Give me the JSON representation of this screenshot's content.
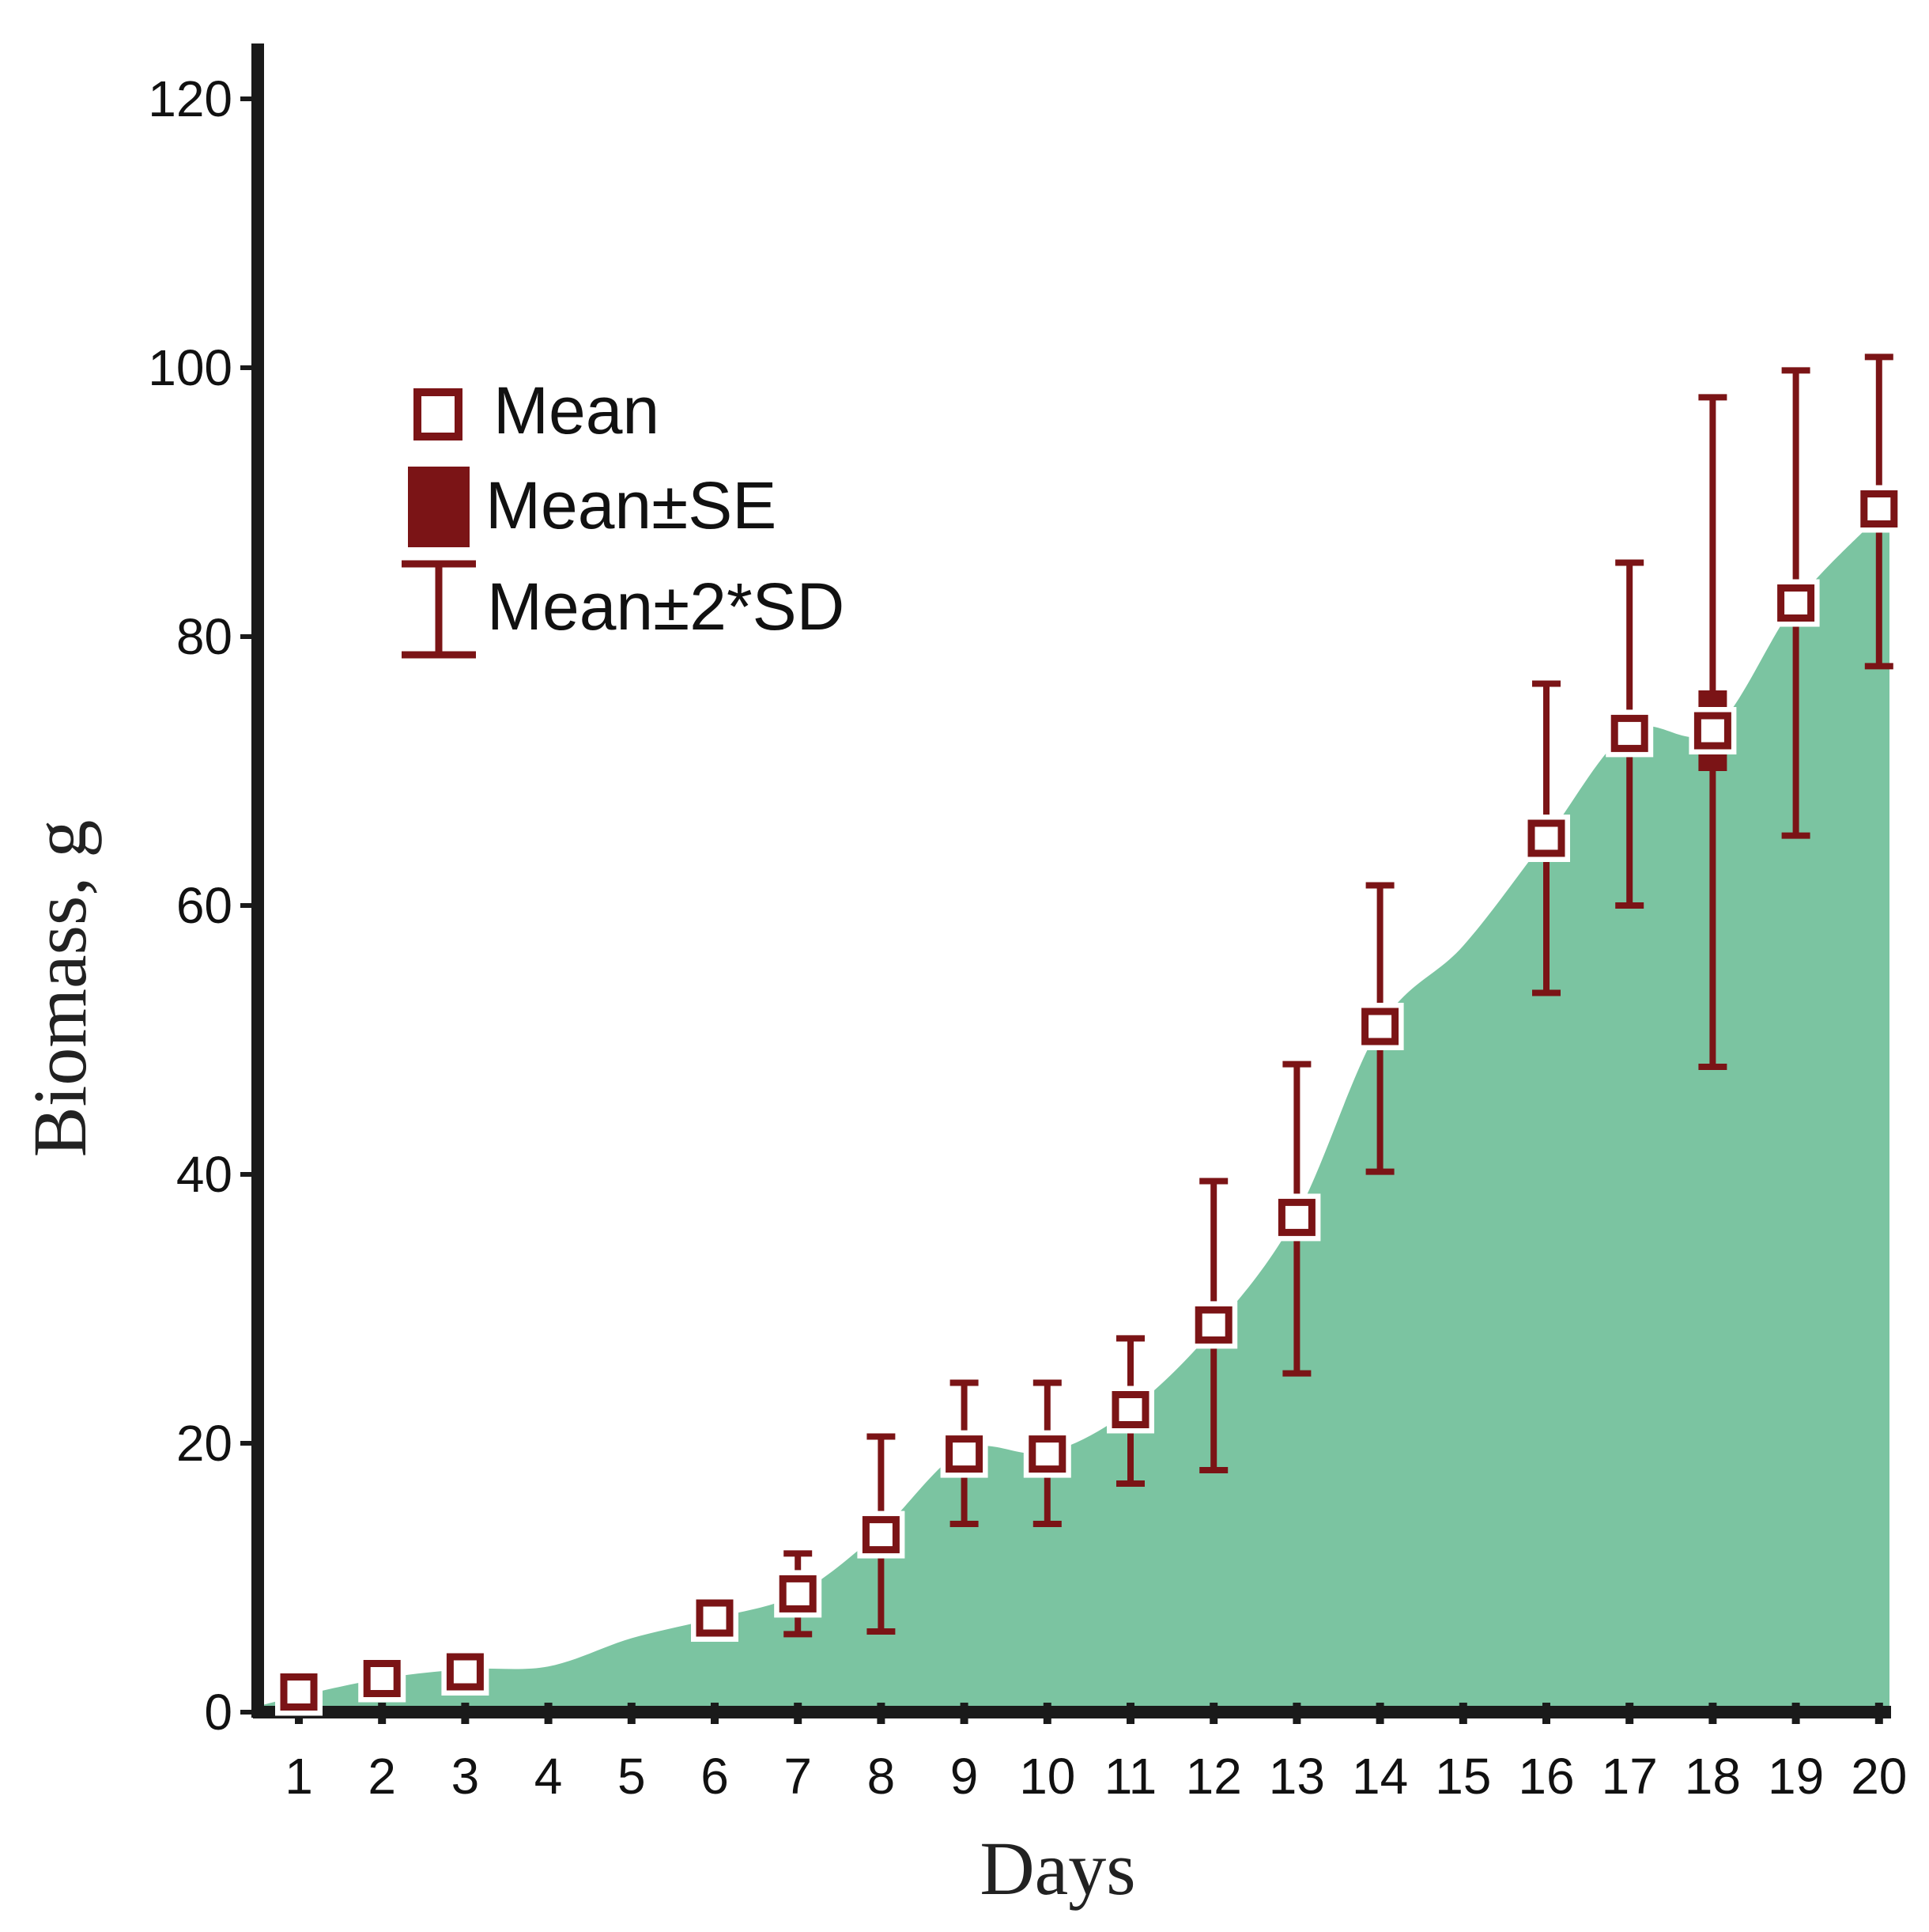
{
  "chart_data": {
    "type": "area",
    "xlabel": "Days",
    "ylabel": "Biomass, g",
    "ylim": [
      0,
      120
    ],
    "yticks": [
      0,
      20,
      40,
      60,
      80,
      100,
      120
    ],
    "categories": [
      "1",
      "2",
      "3",
      "4",
      "5",
      "6",
      "7",
      "8",
      "9",
      "10",
      "11",
      "12",
      "13",
      "14",
      "15",
      "16",
      "17",
      "18",
      "19",
      "20"
    ],
    "area_series": {
      "name": "Biomass",
      "values": [
        1.2,
        2.5,
        3.2,
        3.4,
        5.5,
        7.0,
        8.8,
        13.5,
        19.5,
        19.3,
        22.5,
        28.5,
        37.0,
        51.0,
        57.0,
        65.0,
        73.0,
        73.0,
        82.5,
        89.0
      ]
    },
    "points": [
      {
        "day": "1",
        "mean": 1.5,
        "se_low": 1.2,
        "se_high": 1.8,
        "sd_low": 1.2,
        "sd_high": 1.8
      },
      {
        "day": "2",
        "mean": 2.5,
        "se_low": 2.2,
        "se_high": 2.8,
        "sd_low": 2.2,
        "sd_high": 2.8
      },
      {
        "day": "3",
        "mean": 3.0,
        "se_low": 2.6,
        "se_high": 3.4,
        "sd_low": 2.6,
        "sd_high": 3.4
      },
      {
        "day": "6",
        "mean": 7.0,
        "se_low": 6.5,
        "se_high": 7.5,
        "sd_low": 5.5,
        "sd_high": 8.5
      },
      {
        "day": "7",
        "mean": 8.8,
        "se_low": 8.2,
        "se_high": 9.4,
        "sd_low": 5.8,
        "sd_high": 11.8
      },
      {
        "day": "8",
        "mean": 13.2,
        "se_low": 12.5,
        "se_high": 13.9,
        "sd_low": 6.0,
        "sd_high": 20.5
      },
      {
        "day": "9",
        "mean": 19.2,
        "se_low": 18.5,
        "se_high": 19.9,
        "sd_low": 14.0,
        "sd_high": 24.5
      },
      {
        "day": "10",
        "mean": 19.2,
        "se_low": 18.5,
        "se_high": 19.9,
        "sd_low": 14.0,
        "sd_high": 24.5
      },
      {
        "day": "11",
        "mean": 22.5,
        "se_low": 21.8,
        "se_high": 23.2,
        "sd_low": 17.0,
        "sd_high": 27.8
      },
      {
        "day": "12",
        "mean": 28.8,
        "se_low": 27.8,
        "se_high": 29.8,
        "sd_low": 18.0,
        "sd_high": 39.5
      },
      {
        "day": "13",
        "mean": 36.8,
        "se_low": 35.8,
        "se_high": 37.8,
        "sd_low": 25.2,
        "sd_high": 48.2
      },
      {
        "day": "14",
        "mean": 51.0,
        "se_low": 50.0,
        "se_high": 52.0,
        "sd_low": 40.2,
        "sd_high": 61.5
      },
      {
        "day": "16",
        "mean": 65.0,
        "se_low": 63.6,
        "se_high": 66.4,
        "sd_low": 53.5,
        "sd_high": 76.5
      },
      {
        "day": "17",
        "mean": 72.8,
        "se_low": 71.4,
        "se_high": 74.2,
        "sd_low": 60.0,
        "sd_high": 85.5
      },
      {
        "day": "18",
        "mean": 73.0,
        "se_low": 70.0,
        "se_high": 76.0,
        "sd_low": 48.0,
        "sd_high": 97.8
      },
      {
        "day": "19",
        "mean": 82.5,
        "se_low": 80.8,
        "se_high": 84.2,
        "sd_low": 65.2,
        "sd_high": 99.8
      },
      {
        "day": "20",
        "mean": 89.5,
        "se_low": 87.8,
        "se_high": 91.2,
        "sd_low": 77.8,
        "sd_high": 100.8
      }
    ],
    "legend": [
      {
        "key": "mean",
        "label": "Mean"
      },
      {
        "key": "se",
        "label": "Mean±SE"
      },
      {
        "key": "sd",
        "label": "Mean±2*SD"
      }
    ],
    "legend_position": "top-left"
  },
  "colors": {
    "area": "#7bc4a1",
    "marker": "#7b1416",
    "axis": "#1a1a1a",
    "marker_fill": "#ffffff"
  }
}
